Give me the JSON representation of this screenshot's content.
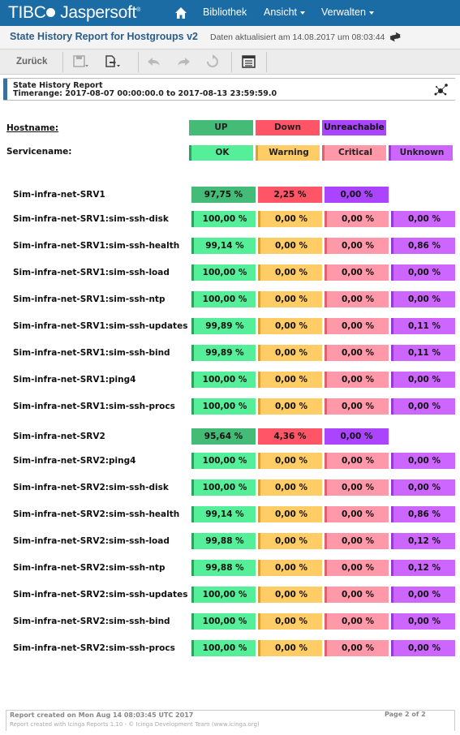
{
  "nav": {
    "logo_left": "TIBC",
    "logo_right": "Jaspersoft",
    "items": [
      "Bibliothek",
      "Ansicht",
      "Verwalten"
    ]
  },
  "titlebar": {
    "title": "State History Report for Hostgroups v2",
    "updated": "Daten aktualisiert am 14.08.2017 um 08:03:44"
  },
  "toolbar": {
    "back_label": "Zurück"
  },
  "report": {
    "name": "State History Report",
    "timerange": "Timerange: 2017-08-07 00:00:00.0 to 2017-08-13 23:59:59.0",
    "hostname_label": "Hostname:",
    "servicename_label": "Servicename:",
    "host_legend": [
      "UP",
      "Down",
      "Unreachable"
    ],
    "service_legend": [
      "OK",
      "Warning",
      "Critical",
      "Unknown"
    ]
  },
  "hosts": [
    {
      "name": "Sim-infra-net-SRV1",
      "up": "97,75 %",
      "down": "2,25 %",
      "unreachable": "0,00 %",
      "services": [
        {
          "name": "Sim-infra-net-SRV1:sim-ssh-disk",
          "ok": "100,00 %",
          "warning": "0,00 %",
          "critical": "0,00 %",
          "unknown": "0,00 %"
        },
        {
          "name": "Sim-infra-net-SRV1:sim-ssh-health",
          "ok": "99,14 %",
          "warning": "0,00 %",
          "critical": "0,00 %",
          "unknown": "0,86 %"
        },
        {
          "name": "Sim-infra-net-SRV1:sim-ssh-load",
          "ok": "100,00 %",
          "warning": "0,00 %",
          "critical": "0,00 %",
          "unknown": "0,00 %"
        },
        {
          "name": "Sim-infra-net-SRV1:sim-ssh-ntp",
          "ok": "100,00 %",
          "warning": "0,00 %",
          "critical": "0,00 %",
          "unknown": "0,00 %"
        },
        {
          "name": "Sim-infra-net-SRV1:sim-ssh-updates",
          "ok": "99,89 %",
          "warning": "0,00 %",
          "critical": "0,00 %",
          "unknown": "0,11 %"
        },
        {
          "name": "Sim-infra-net-SRV1:sim-ssh-bind",
          "ok": "99,89 %",
          "warning": "0,00 %",
          "critical": "0,00 %",
          "unknown": "0,11 %"
        },
        {
          "name": "Sim-infra-net-SRV1:ping4",
          "ok": "100,00 %",
          "warning": "0,00 %",
          "critical": "0,00 %",
          "unknown": "0,00 %"
        },
        {
          "name": "Sim-infra-net-SRV1:sim-ssh-procs",
          "ok": "100,00 %",
          "warning": "0,00 %",
          "critical": "0,00 %",
          "unknown": "0,00 %"
        }
      ]
    },
    {
      "name": "Sim-infra-net-SRV2",
      "up": "95,64 %",
      "down": "4,36 %",
      "unreachable": "0,00 %",
      "services": [
        {
          "name": "Sim-infra-net-SRV2:ping4",
          "ok": "100,00 %",
          "warning": "0,00 %",
          "critical": "0,00 %",
          "unknown": "0,00 %"
        },
        {
          "name": "Sim-infra-net-SRV2:sim-ssh-disk",
          "ok": "100,00 %",
          "warning": "0,00 %",
          "critical": "0,00 %",
          "unknown": "0,00 %"
        },
        {
          "name": "Sim-infra-net-SRV2:sim-ssh-health",
          "ok": "99,14 %",
          "warning": "0,00 %",
          "critical": "0,00 %",
          "unknown": "0,86 %"
        },
        {
          "name": "Sim-infra-net-SRV2:sim-ssh-load",
          "ok": "99,88 %",
          "warning": "0,00 %",
          "critical": "0,00 %",
          "unknown": "0,12 %"
        },
        {
          "name": "Sim-infra-net-SRV2:sim-ssh-ntp",
          "ok": "99,88 %",
          "warning": "0,00 %",
          "critical": "0,00 %",
          "unknown": "0,12 %"
        },
        {
          "name": "Sim-infra-net-SRV2:sim-ssh-updates",
          "ok": "100,00 %",
          "warning": "0,00 %",
          "critical": "0,00 %",
          "unknown": "0,00 %"
        },
        {
          "name": "Sim-infra-net-SRV2:sim-ssh-bind",
          "ok": "100,00 %",
          "warning": "0,00 %",
          "critical": "0,00 %",
          "unknown": "0,00 %"
        },
        {
          "name": "Sim-infra-net-SRV2:sim-ssh-procs",
          "ok": "100,00 %",
          "warning": "0,00 %",
          "critical": "0,00 %",
          "unknown": "0,00 %"
        }
      ]
    }
  ],
  "footer": {
    "created": "Report created on Mon Aug 14 08:03:45 UTC 2017",
    "credit": "Report created with Icinga Reports 1.10 - © Icinga Development Team (www.icinga.org)",
    "page": "Page 2 of 2"
  }
}
